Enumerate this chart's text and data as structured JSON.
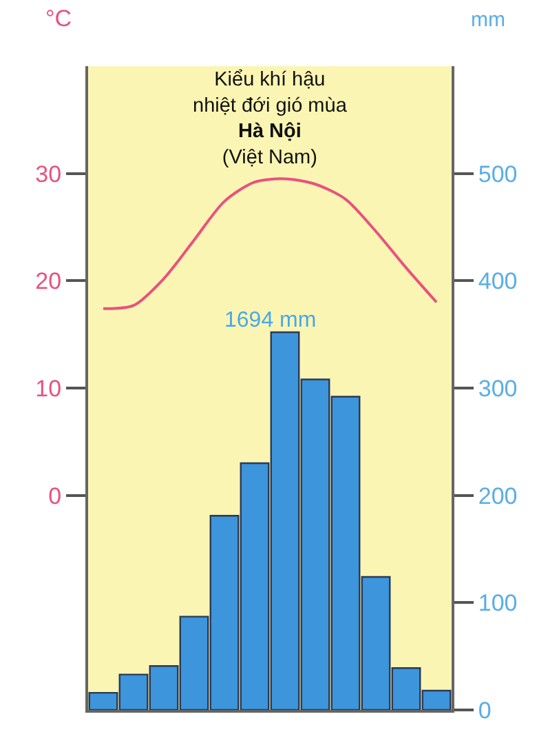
{
  "chart_data": {
    "type": "bar",
    "title": "Kiểu khí hậu\nnhiệt đới gió mùa",
    "subtitle": "Hà Nội\n(Việt Nam)",
    "ylabel": "°C",
    "y2label": "mm",
    "annotations": [
      "1694 mm"
    ],
    "categories": [
      null,
      null,
      null,
      null,
      null,
      null,
      null,
      null,
      null,
      null,
      null,
      null
    ],
    "series": [
      {
        "axis": "y2",
        "color": "#3d95dc",
        "values": [
          16,
          33,
          41,
          87,
          181,
          230,
          352,
          308,
          292,
          124,
          39,
          18
        ]
      },
      {
        "type": "line",
        "axis": "y",
        "color": "#e8527f",
        "values": [
          17.4,
          17.7,
          20.2,
          23.8,
          27.4,
          29.2,
          29.5,
          29.0,
          27.6,
          24.6,
          21.2,
          18.0
        ]
      }
    ],
    "ylim": [
      -20,
      40
    ],
    "yticks": [
      0,
      10,
      20,
      30
    ],
    "y2lim": [
      0,
      600
    ],
    "y2ticks": [
      0,
      100,
      200,
      300,
      400,
      500
    ],
    "grid": false,
    "legend": false,
    "marker": "none",
    "line_style": "solid"
  }
}
